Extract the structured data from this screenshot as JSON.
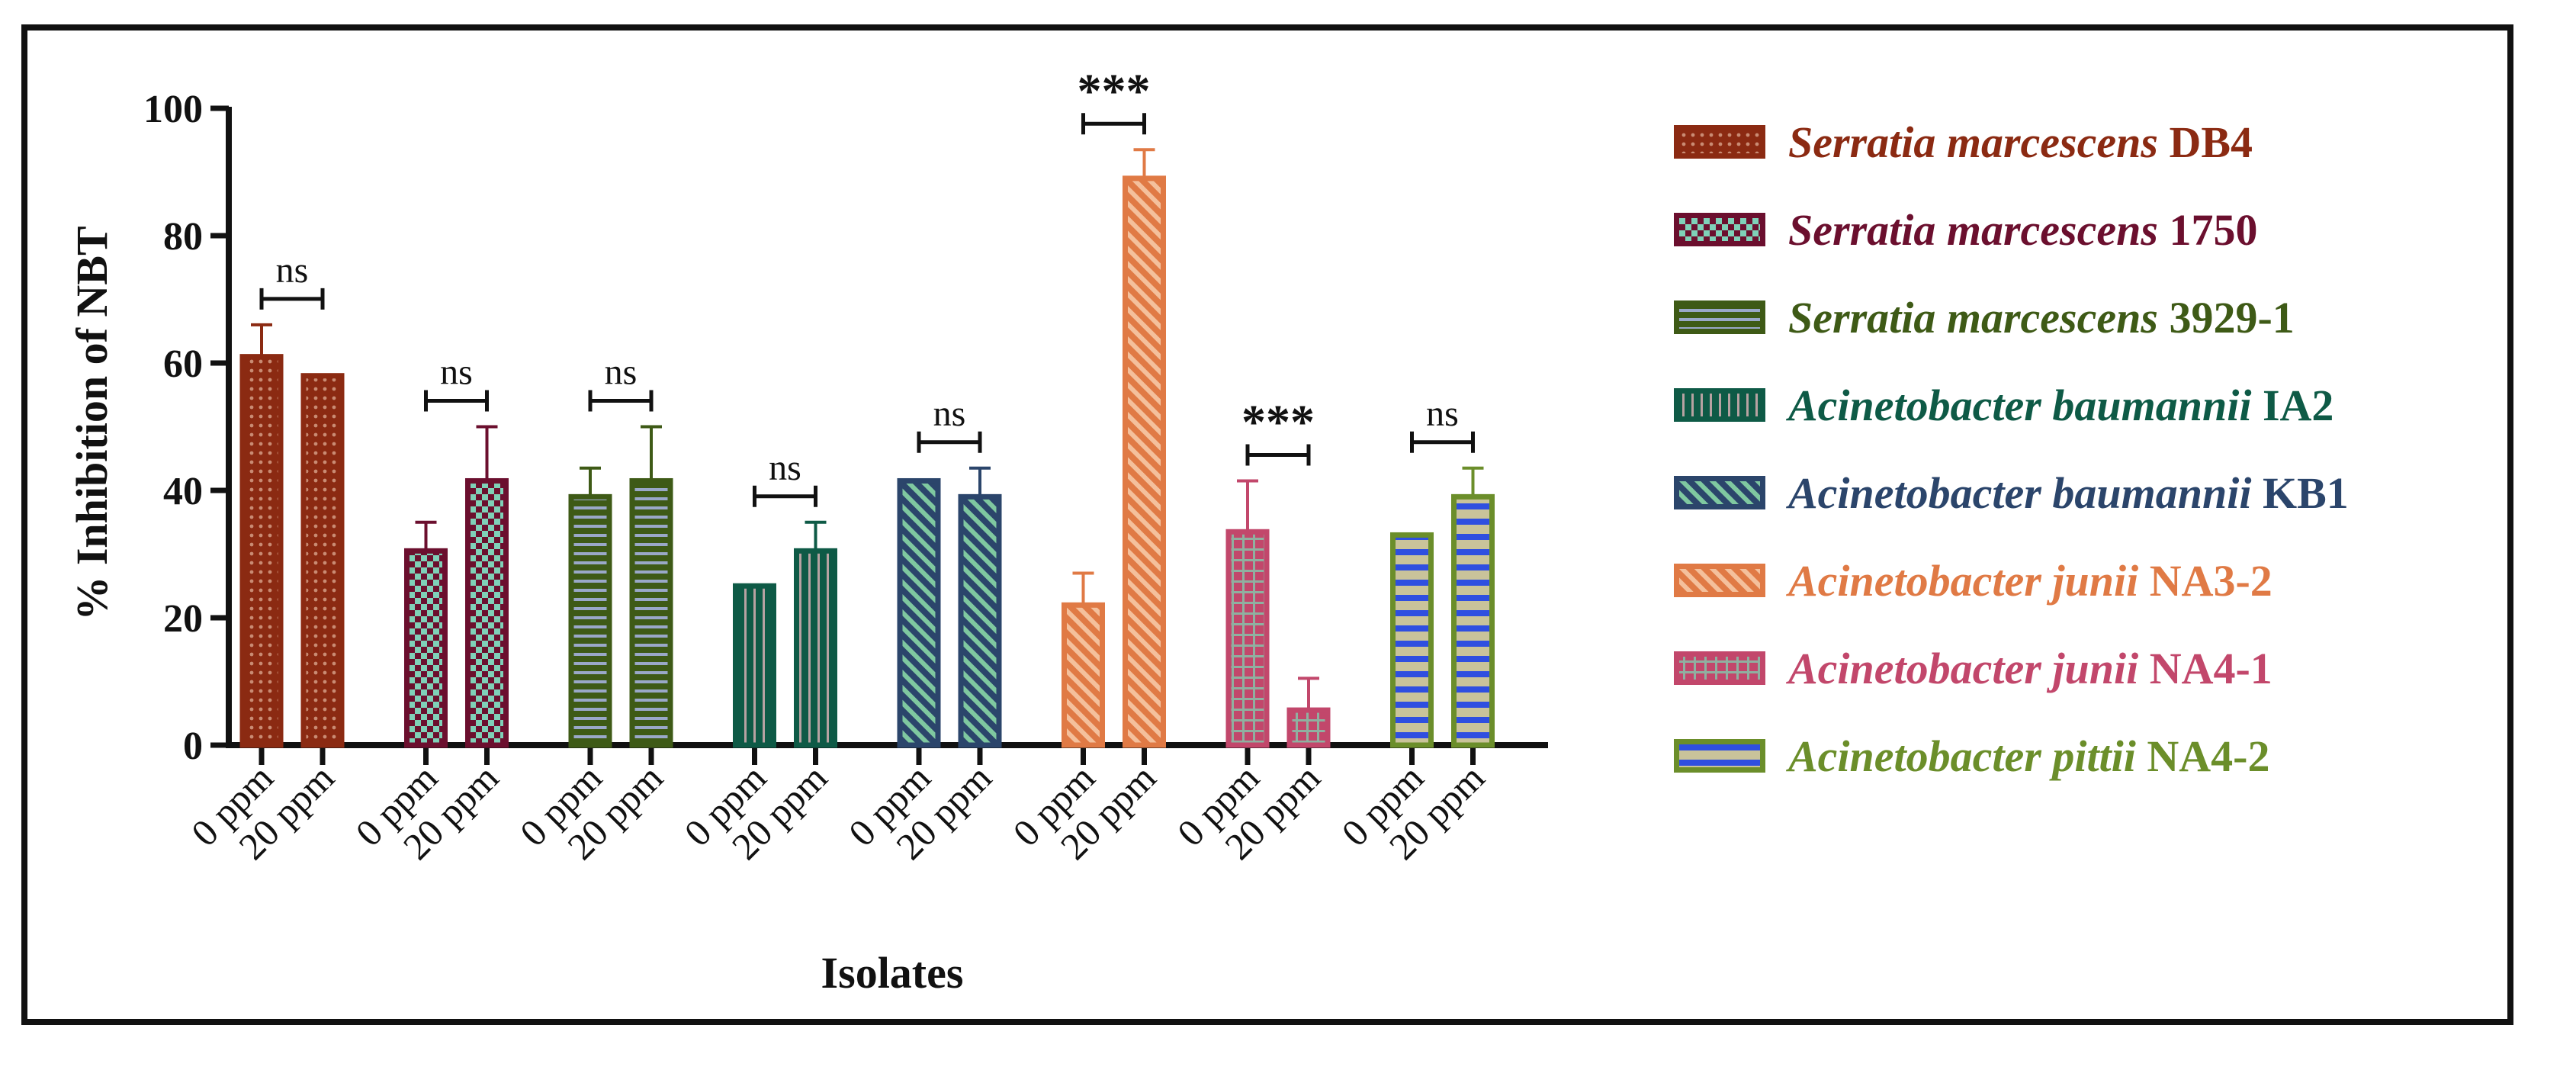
{
  "chart_data": {
    "type": "bar",
    "title": "",
    "xlabel": "Isolates",
    "ylabel": "% Inhibition of NBT",
    "ylim": [
      0,
      100
    ],
    "yticks": [
      0,
      20,
      40,
      60,
      80,
      100
    ],
    "categories": [
      "0 ppm",
      "20 ppm"
    ],
    "series": [
      {
        "name": "Serratia marcescens DB4",
        "genus": "Serratia marcescens",
        "strain": "DB4",
        "color": "#8B2A12",
        "accent": "#c98b73",
        "pattern": "dots",
        "values": [
          61,
          58
        ],
        "errors": [
          5,
          0
        ],
        "significance": "ns"
      },
      {
        "name": "Serratia marcescens 1750",
        "genus": "Serratia marcescens",
        "strain": "1750",
        "color": "#6B0F2E",
        "accent": "#7fd1b8",
        "pattern": "checker",
        "values": [
          30.5,
          41.5
        ],
        "errors": [
          4.5,
          8.5
        ],
        "significance": "ns"
      },
      {
        "name": "Serratia marcescens 3929-1",
        "genus": "Serratia marcescens",
        "strain": "3929-1",
        "color": "#3E5A16",
        "accent": "#9aa8c8",
        "pattern": "hlines",
        "values": [
          39,
          41.5
        ],
        "errors": [
          4.5,
          8.5
        ],
        "significance": "ns"
      },
      {
        "name": "Acinetobacter baumannii IA2",
        "genus": "Acinetobacter baumannii",
        "strain": "IA2",
        "color": "#0E5A46",
        "accent": "#b7a2a2",
        "pattern": "vlines",
        "values": [
          25,
          30.5
        ],
        "errors": [
          0,
          4.5
        ],
        "significance": "ns"
      },
      {
        "name": "Acinetobacter baumannii KB1",
        "genus": "Acinetobacter baumannii",
        "strain": "KB1",
        "color": "#2B456B",
        "accent": "#7fc8a0",
        "pattern": "diagonal",
        "values": [
          41.5,
          39
        ],
        "errors": [
          0,
          4.5
        ],
        "significance": "ns"
      },
      {
        "name": "Acinetobacter junii NA3-2",
        "genus": "Acinetobacter junii",
        "strain": "NA3-2",
        "color": "#E07A45",
        "accent": "#f4c09c",
        "pattern": "diagonal",
        "values": [
          22,
          89
        ],
        "errors": [
          5,
          4.5
        ],
        "significance": "***"
      },
      {
        "name": "Acinetobacter junii NA4-1",
        "genus": "Acinetobacter junii",
        "strain": "NA4-1",
        "color": "#C2476B",
        "accent": "#8fb0a0",
        "pattern": "grid",
        "values": [
          33.5,
          5.5
        ],
        "errors": [
          8,
          5
        ],
        "significance": "***"
      },
      {
        "name": "Acinetobacter pittii NA4-2",
        "genus": "Acinetobacter pittii",
        "strain": "NA4-2",
        "color": "#6B8E2A",
        "accent": "#2f4fe0",
        "pattern": "hbands",
        "values": [
          33,
          39
        ],
        "errors": [
          0,
          4.5
        ],
        "significance": "ns"
      }
    ]
  }
}
